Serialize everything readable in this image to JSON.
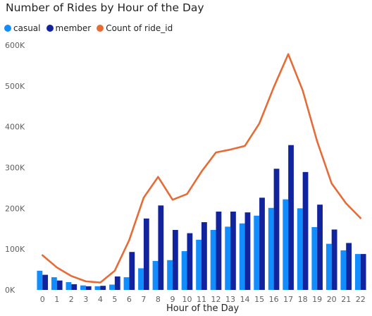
{
  "chart_data": {
    "type": "bar",
    "title": "Number of Rides by Hour of the Day",
    "xlabel": "Hour of the Day",
    "ylabel": "",
    "ylim": [
      0,
      600000
    ],
    "yticks": [
      0,
      100000,
      200000,
      300000,
      400000,
      500000,
      600000
    ],
    "ytick_labels": [
      "0K",
      "100K",
      "200K",
      "300K",
      "400K",
      "500K",
      "600K"
    ],
    "categories": [
      "0",
      "1",
      "2",
      "3",
      "4",
      "5",
      "6",
      "7",
      "8",
      "9",
      "10",
      "11",
      "12",
      "13",
      "14",
      "15",
      "16",
      "17",
      "18",
      "19",
      "20",
      "21",
      "22"
    ],
    "legend_position": "top-left",
    "grid": false,
    "series": [
      {
        "name": "casual",
        "kind": "bar",
        "color": "#118DFF",
        "values": [
          47000,
          31000,
          19000,
          11000,
          9000,
          13000,
          31000,
          53000,
          71000,
          73000,
          95000,
          123000,
          147000,
          155000,
          163000,
          182000,
          201000,
          222000,
          200000,
          154000,
          113000,
          97000,
          88000
        ]
      },
      {
        "name": "member",
        "kind": "bar",
        "color": "#12239E",
        "values": [
          37000,
          23000,
          14000,
          9000,
          10000,
          33000,
          93000,
          175000,
          207000,
          147000,
          139000,
          166000,
          192000,
          192000,
          190000,
          226000,
          297000,
          355000,
          289000,
          209000,
          148000,
          115000,
          88000
        ]
      },
      {
        "name": "Count of ride_id",
        "kind": "line",
        "color": "#E66C37",
        "values": [
          85000,
          55000,
          34000,
          21000,
          18000,
          47000,
          122000,
          226000,
          277000,
          221000,
          235000,
          290000,
          337000,
          344000,
          353000,
          408000,
          497000,
          578000,
          489000,
          364000,
          261000,
          212000,
          176000
        ]
      }
    ]
  }
}
